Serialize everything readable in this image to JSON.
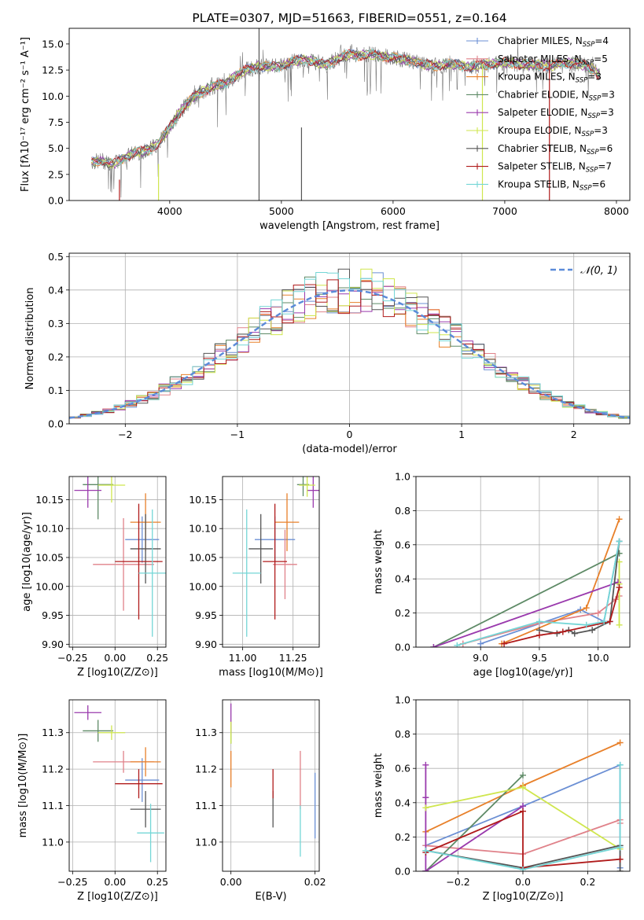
{
  "colors": {
    "Chabrier MILES": "#6b8fd4",
    "Salpeter MILES": "#e0828a",
    "Kroupa MILES": "#e8802a",
    "Chabrier ELODIE": "#5e8a66",
    "Salpeter ELODIE": "#9a3aad",
    "Kroupa ELODIE": "#cfe64e",
    "Chabrier STELIB": "#555555",
    "Salpeter STELIB": "#b01b1b",
    "Kroupa STELIB": "#74d6d6"
  },
  "chart_data": [
    {
      "id": "spectrum",
      "type": "line",
      "title": "PLATE=0307, MJD=51663, FIBERID=0551, z=0.164",
      "xlabel": "wavelength [Angstrom, rest frame]",
      "ylabel": "Flux [fλ10⁻¹⁷ erg cm⁻² s⁻¹ A⁻¹]",
      "xlim": [
        3100,
        8120
      ],
      "ylim": [
        0,
        16.5
      ],
      "xticks": [
        "4000",
        "5000",
        "6000",
        "7000",
        "8000"
      ],
      "yticks": [
        "0.0",
        "2.5",
        "5.0",
        "7.5",
        "10.0",
        "12.5",
        "15.0"
      ],
      "grid": false,
      "legend_position": "right",
      "legend": [
        {
          "model": "Chabrier MILES",
          "label": "Chabrier MILES, N",
          "nssp": "=4"
        },
        {
          "model": "Salpeter MILES",
          "label": "Salpeter MILES, N",
          "nssp": "=5"
        },
        {
          "model": "Kroupa MILES",
          "label": "Kroupa MILES, N",
          "nssp": "=3"
        },
        {
          "model": "Chabrier ELODIE",
          "label": "Chabrier ELODIE, N",
          "nssp": "=3"
        },
        {
          "model": "Salpeter ELODIE",
          "label": "Salpeter ELODIE, N",
          "nssp": "=3"
        },
        {
          "model": "Kroupa ELODIE",
          "label": "Kroupa ELODIE, N",
          "nssp": "=3"
        },
        {
          "model": "Chabrier STELIB",
          "label": "Chabrier STELIB, N",
          "nssp": "=6"
        },
        {
          "model": "Salpeter STELIB",
          "label": "Salpeter STELIB, N",
          "nssp": "=7"
        },
        {
          "model": "Kroupa STELIB",
          "label": "Kroupa STELIB, N",
          "nssp": "=6"
        }
      ],
      "continuum": {
        "x": [
          3300,
          3400,
          3500,
          3600,
          3700,
          3800,
          3900,
          4000,
          4100,
          4200,
          4300,
          4400,
          4500,
          4600,
          4700,
          4800,
          4900,
          5000,
          5100,
          5200,
          5300,
          5400,
          5500,
          5600,
          5700,
          5800,
          5900,
          6000,
          6100,
          6200,
          6300,
          6400,
          6500,
          6600,
          6700,
          6800,
          6900,
          7000,
          7100,
          7200,
          7300,
          7400,
          7500,
          7600,
          7700,
          7800,
          7850
        ],
        "y": [
          3.7,
          3.8,
          3.5,
          4.2,
          4.6,
          4.8,
          5.5,
          7.0,
          8.6,
          9.8,
          10.5,
          11.0,
          11.2,
          12.0,
          12.6,
          12.9,
          12.8,
          12.9,
          13.3,
          13.5,
          13.3,
          13.0,
          13.6,
          14.0,
          13.9,
          14.0,
          13.8,
          13.7,
          13.5,
          13.3,
          13.0,
          12.9,
          13.1,
          13.0,
          12.8,
          13.0,
          13.1,
          13.2,
          13.1,
          13.0,
          13.0,
          12.9,
          13.1,
          13.2,
          13.0,
          12.5,
          12.0
        ]
      },
      "spikes": [
        {
          "x": 3550,
          "y_low": 0.0,
          "y_high": 2.0,
          "model": "Salpeter STELIB"
        },
        {
          "x": 3900,
          "y_low": 0.0,
          "y_high": 3.5,
          "model": "Kroupa ELODIE"
        },
        {
          "x": 4800,
          "y_low": 0.0,
          "y_high": 16.5,
          "model": "Chabrier STELIB"
        },
        {
          "x": 5180,
          "y_low": 0.0,
          "y_high": 7.0,
          "model": "Chabrier STELIB"
        },
        {
          "x": 6800,
          "y_low": 0.0,
          "y_high": 13.0,
          "model": "Kroupa ELODIE"
        },
        {
          "x": 7400,
          "y_low": 0.0,
          "y_high": 13.5,
          "model": "Salpeter STELIB"
        }
      ]
    },
    {
      "id": "residuals",
      "type": "step",
      "xlabel": "(data-model)/error",
      "ylabel": "Normed distribution",
      "xlim": [
        -2.5,
        2.5
      ],
      "ylim": [
        0,
        0.51
      ],
      "xticks": [
        -2,
        -1,
        0,
        1,
        2
      ],
      "xticklabels": [
        "−2",
        "−1",
        "0",
        "1",
        "2"
      ],
      "yticks": [
        0.0,
        0.1,
        0.2,
        0.3,
        0.4,
        0.5
      ],
      "yticklabels": [
        "0.0",
        "0.1",
        "0.2",
        "0.3",
        "0.4",
        "0.5"
      ],
      "grid": true,
      "legend_position": "top-right",
      "legend_label": "𝒩(0, 1)",
      "bin_width": 0.1,
      "normal_curve": {
        "mean": 0,
        "sigma": 1,
        "style": "dashed"
      }
    },
    {
      "id": "age_vs_Z",
      "type": "errorbar",
      "xlabel": "Z [log10(Z/Z⊙)]",
      "ylabel": "age  [log10(age/yr)]",
      "xlim": [
        -0.27,
        0.3
      ],
      "ylim": [
        9.895,
        10.19
      ],
      "xticks": [
        -0.25,
        0.0,
        0.25
      ],
      "xticklabels": [
        "−0.25",
        "0.00",
        "0.25"
      ],
      "yticks": [
        9.9,
        9.95,
        10.0,
        10.05,
        10.1,
        10.15
      ],
      "yticklabels": [
        "9.90",
        "9.95",
        "10.00",
        "10.05",
        "10.10",
        "10.15"
      ],
      "grid": true,
      "points": [
        {
          "model": "Chabrier MILES",
          "x": 0.16,
          "y": 10.081,
          "xerr": 0.1,
          "yerr": 0.04
        },
        {
          "model": "Salpeter MILES",
          "x": 0.05,
          "y": 10.038,
          "xerr": 0.18,
          "yerr": 0.08
        },
        {
          "model": "Kroupa MILES",
          "x": 0.18,
          "y": 10.111,
          "xerr": 0.09,
          "yerr": 0.05
        },
        {
          "model": "Chabrier ELODIE",
          "x": -0.1,
          "y": 10.176,
          "xerr": 0.09,
          "yerr": 0.06
        },
        {
          "model": "Salpeter ELODIE",
          "x": -0.16,
          "y": 10.166,
          "xerr": 0.08,
          "yerr": 0.03
        },
        {
          "model": "Kroupa ELODIE",
          "x": -0.02,
          "y": 10.175,
          "xerr": 0.08,
          "yerr": 0.03
        },
        {
          "model": "Chabrier STELIB",
          "x": 0.18,
          "y": 10.065,
          "xerr": 0.09,
          "yerr": 0.06
        },
        {
          "model": "Salpeter STELIB",
          "x": 0.14,
          "y": 10.043,
          "xerr": 0.14,
          "yerr": 0.1
        },
        {
          "model": "Kroupa STELIB",
          "x": 0.22,
          "y": 10.023,
          "xerr": 0.08,
          "yerr": 0.11
        }
      ]
    },
    {
      "id": "age_vs_mass",
      "type": "errorbar",
      "xlabel": "mass [log10(M/M⊙)]",
      "ylabel": "",
      "xlim": [
        10.9,
        11.38
      ],
      "ylim": [
        9.895,
        10.19
      ],
      "xticks": [
        11.0,
        11.25
      ],
      "xticklabels": [
        "11.00",
        "11.25"
      ],
      "yticks": [
        9.9,
        9.95,
        10.0,
        10.05,
        10.1,
        10.15
      ],
      "yticklabels": [
        "9.90",
        "9.95",
        "10.00",
        "10.05",
        "10.10",
        "10.15"
      ],
      "grid": true,
      "points": [
        {
          "model": "Chabrier MILES",
          "x": 11.16,
          "y": 10.081,
          "xerr": 0.1,
          "yerr": 0.04
        },
        {
          "model": "Salpeter MILES",
          "x": 11.21,
          "y": 10.038,
          "xerr": 0.06,
          "yerr": 0.06
        },
        {
          "model": "Kroupa MILES",
          "x": 11.22,
          "y": 10.111,
          "xerr": 0.06,
          "yerr": 0.05
        },
        {
          "model": "Chabrier ELODIE",
          "x": 11.3,
          "y": 10.176,
          "xerr": 0.03,
          "yerr": 0.02
        },
        {
          "model": "Salpeter ELODIE",
          "x": 11.35,
          "y": 10.166,
          "xerr": 0.03,
          "yerr": 0.03
        },
        {
          "model": "Kroupa ELODIE",
          "x": 11.32,
          "y": 10.175,
          "xerr": 0.04,
          "yerr": 0.02
        },
        {
          "model": "Chabrier STELIB",
          "x": 11.09,
          "y": 10.065,
          "xerr": 0.06,
          "yerr": 0.06
        },
        {
          "model": "Salpeter STELIB",
          "x": 11.16,
          "y": 10.043,
          "xerr": 0.06,
          "yerr": 0.1
        },
        {
          "model": "Kroupa STELIB",
          "x": 11.02,
          "y": 10.023,
          "xerr": 0.07,
          "yerr": 0.11
        }
      ]
    },
    {
      "id": "weight_vs_age",
      "type": "line",
      "xlabel": "age  [log10(age/yr)]",
      "ylabel": "mass weight",
      "xlim": [
        8.45,
        10.27
      ],
      "ylim": [
        0,
        1.0
      ],
      "xticks": [
        9.0,
        9.5,
        10.0
      ],
      "xticklabels": [
        "9.0",
        "9.5",
        "10.0"
      ],
      "yticks": [
        0,
        0.2,
        0.4,
        0.6,
        0.8,
        1.0
      ],
      "yticklabels": [
        "0.0",
        "0.2",
        "0.4",
        "0.6",
        "0.8",
        "1.0"
      ],
      "grid": true,
      "series": [
        {
          "model": "Chabrier MILES",
          "x": [
            9.0,
            9.85,
            10.05,
            10.18
          ],
          "y": [
            0.02,
            0.22,
            0.15,
            0.62
          ]
        },
        {
          "model": "Salpeter MILES",
          "x": [
            8.85,
            9.5,
            10.0,
            10.15,
            10.18
          ],
          "y": [
            0.02,
            0.14,
            0.2,
            0.28,
            0.3
          ]
        },
        {
          "model": "Kroupa MILES",
          "x": [
            9.18,
            9.9,
            10.18
          ],
          "y": [
            0.02,
            0.23,
            0.75
          ]
        },
        {
          "model": "Chabrier ELODIE",
          "x": [
            10.18,
            8.6,
            10.18
          ],
          "y": [
            0.55,
            0.0,
            0.55
          ]
        },
        {
          "model": "Salpeter ELODIE",
          "x": [
            10.17,
            8.6,
            10.17
          ],
          "y": [
            0.38,
            0.0,
            0.38
          ]
        },
        {
          "model": "Kroupa ELODIE",
          "x": [
            10.18,
            10.18,
            10.18
          ],
          "y": [
            0.5,
            0.37,
            0.13
          ]
        },
        {
          "model": "Chabrier STELIB",
          "x": [
            9.5,
            9.65,
            9.75,
            9.8,
            9.95,
            10.1,
            10.18
          ],
          "y": [
            0.1,
            0.08,
            0.1,
            0.08,
            0.1,
            0.15,
            0.62
          ]
        },
        {
          "model": "Salpeter STELIB",
          "x": [
            9.2,
            9.5,
            9.7,
            10.1,
            10.18
          ],
          "y": [
            0.02,
            0.07,
            0.09,
            0.15,
            0.35
          ]
        },
        {
          "model": "Kroupa STELIB",
          "x": [
            8.8,
            9.5,
            9.9,
            10.05,
            10.18
          ],
          "y": [
            0.01,
            0.15,
            0.13,
            0.15,
            0.62
          ]
        }
      ]
    },
    {
      "id": "mass_vs_Z",
      "type": "errorbar",
      "xlabel": "Z [log10(Z/Z⊙)]",
      "ylabel": "mass [log10(M/M⊙)]",
      "xlim": [
        -0.27,
        0.3
      ],
      "ylim": [
        10.92,
        11.39
      ],
      "xticks": [
        -0.25,
        0.0,
        0.25
      ],
      "xticklabels": [
        "−0.25",
        "0.00",
        "0.25"
      ],
      "yticks": [
        11.0,
        11.1,
        11.2,
        11.3
      ],
      "yticklabels": [
        "11.0",
        "11.1",
        "11.2",
        "11.3"
      ],
      "grid": true,
      "points": [
        {
          "model": "Chabrier MILES",
          "x": 0.16,
          "y": 11.17,
          "xerr": 0.1,
          "yerr": 0.06
        },
        {
          "model": "Salpeter MILES",
          "x": 0.05,
          "y": 11.22,
          "xerr": 0.18,
          "yerr": 0.03
        },
        {
          "model": "Kroupa MILES",
          "x": 0.18,
          "y": 11.22,
          "xerr": 0.09,
          "yerr": 0.04
        },
        {
          "model": "Chabrier ELODIE",
          "x": -0.1,
          "y": 11.305,
          "xerr": 0.09,
          "yerr": 0.03
        },
        {
          "model": "Salpeter ELODIE",
          "x": -0.16,
          "y": 11.355,
          "xerr": 0.08,
          "yerr": 0.02
        },
        {
          "model": "Kroupa ELODIE",
          "x": -0.02,
          "y": 11.3,
          "xerr": 0.08,
          "yerr": 0.02
        },
        {
          "model": "Chabrier STELIB",
          "x": 0.18,
          "y": 11.09,
          "xerr": 0.09,
          "yerr": 0.05
        },
        {
          "model": "Salpeter STELIB",
          "x": 0.14,
          "y": 11.16,
          "xerr": 0.14,
          "yerr": 0.04
        },
        {
          "model": "Kroupa STELIB",
          "x": 0.21,
          "y": 11.025,
          "xerr": 0.08,
          "yerr": 0.08
        }
      ]
    },
    {
      "id": "mass_vs_ebv",
      "type": "errorbar",
      "xlabel": "E(B-V)",
      "ylabel": "",
      "xlim": [
        -0.002,
        0.021
      ],
      "ylim": [
        10.92,
        11.39
      ],
      "xticks": [
        0.0,
        0.02
      ],
      "xticklabels": [
        "0.00",
        "0.02"
      ],
      "yticks": [
        11.0,
        11.1,
        11.2,
        11.3
      ],
      "yticklabels": [
        "11.0",
        "11.1",
        "11.2",
        "11.3"
      ],
      "grid": true,
      "points": [
        {
          "model": "Chabrier MILES",
          "x": 0.02,
          "y": 11.1,
          "xerr": 0.0,
          "yerr": 0.09
        },
        {
          "model": "Salpeter MILES",
          "x": 0.0165,
          "y": 11.17,
          "xerr": 0.0,
          "yerr": 0.08
        },
        {
          "model": "Kroupa MILES",
          "x": 0.0,
          "y": 11.2,
          "xerr": 0.0,
          "yerr": 0.05
        },
        {
          "model": "Chabrier ELODIE",
          "x": 0.0,
          "y": 11.3,
          "xerr": 0.0,
          "yerr": 0.03
        },
        {
          "model": "Salpeter ELODIE",
          "x": 0.0,
          "y": 11.34,
          "xerr": 0.0,
          "yerr": 0.04
        },
        {
          "model": "Kroupa ELODIE",
          "x": 0.0,
          "y": 11.3,
          "xerr": 0.0,
          "yerr": 0.03
        },
        {
          "model": "Chabrier STELIB",
          "x": 0.01,
          "y": 11.09,
          "xerr": 0.0,
          "yerr": 0.05
        },
        {
          "model": "Salpeter STELIB",
          "x": 0.01,
          "y": 11.16,
          "xerr": 0.0,
          "yerr": 0.04
        },
        {
          "model": "Kroupa STELIB",
          "x": 0.0165,
          "y": 11.03,
          "xerr": 0.0,
          "yerr": 0.07
        }
      ]
    },
    {
      "id": "weight_vs_Z",
      "type": "line",
      "xlabel": "Z [log10(Z/Z⊙)]",
      "ylabel": "mass weight",
      "xlim": [
        -0.33,
        0.33
      ],
      "ylim": [
        0,
        1.0
      ],
      "xticks": [
        -0.2,
        0.0,
        0.2
      ],
      "xticklabels": [
        "−0.2",
        "0.0",
        "0.2"
      ],
      "yticks": [
        0,
        0.2,
        0.4,
        0.6,
        0.8,
        1.0
      ],
      "yticklabels": [
        "0.0",
        "0.2",
        "0.4",
        "0.6",
        "0.8",
        "1.0"
      ],
      "grid": true,
      "series": [
        {
          "model": "Chabrier MILES",
          "x": [
            -0.3,
            0.0,
            0.3,
            0.3
          ],
          "y": [
            0.15,
            0.38,
            0.62,
            0.02
          ]
        },
        {
          "model": "Salpeter MILES",
          "x": [
            -0.3,
            0.0,
            0.3,
            0.3
          ],
          "y": [
            0.15,
            0.1,
            0.3,
            0.28
          ]
        },
        {
          "model": "Kroupa MILES",
          "x": [
            -0.3,
            0.0,
            0.3
          ],
          "y": [
            0.23,
            0.5,
            0.75
          ]
        },
        {
          "model": "Chabrier ELODIE",
          "x": [
            -0.3,
            0.0,
            -0.3
          ],
          "y": [
            0.0,
            0.56,
            0.0
          ]
        },
        {
          "model": "Salpeter ELODIE",
          "x": [
            -0.3,
            -0.3,
            0.0,
            -0.3,
            -0.3
          ],
          "y": [
            0.62,
            0.0,
            0.38,
            0.0,
            0.43
          ]
        },
        {
          "model": "Kroupa ELODIE",
          "x": [
            -0.3,
            0.0,
            0.3
          ],
          "y": [
            0.37,
            0.49,
            0.13
          ]
        },
        {
          "model": "Chabrier STELIB",
          "x": [
            -0.3,
            0.0,
            0.3,
            0.3
          ],
          "y": [
            0.12,
            0.02,
            0.15,
            0.0
          ]
        },
        {
          "model": "Salpeter STELIB",
          "x": [
            -0.3,
            0.0,
            0.0,
            0.3
          ],
          "y": [
            0.11,
            0.35,
            0.02,
            0.07
          ]
        },
        {
          "model": "Kroupa STELIB",
          "x": [
            -0.3,
            0.0,
            0.3,
            0.3
          ],
          "y": [
            0.12,
            0.01,
            0.14,
            0.62
          ]
        }
      ]
    }
  ]
}
